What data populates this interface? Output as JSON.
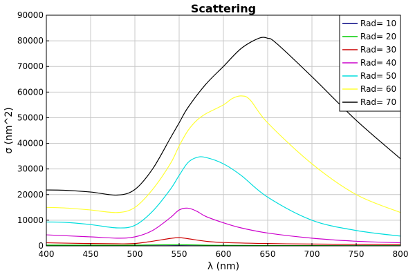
{
  "chart_data": {
    "type": "line",
    "title": "Scattering",
    "xlabel": "λ (nm)",
    "ylabel": "σ (nm^2)",
    "xlim": [
      400,
      800
    ],
    "ylim": [
      0,
      90000
    ],
    "x_ticks": [
      400,
      450,
      500,
      550,
      600,
      650,
      700,
      750,
      800
    ],
    "y_ticks": [
      0,
      10000,
      20000,
      30000,
      40000,
      50000,
      60000,
      70000,
      80000,
      90000
    ],
    "grid": true,
    "legend_position": "top-right",
    "series": [
      {
        "name": "Rad= 10",
        "color": "#000080",
        "x": [
          400,
          500,
          550,
          600,
          700,
          800
        ],
        "y": [
          60,
          40,
          60,
          30,
          15,
          10
        ]
      },
      {
        "name": "Rad= 20",
        "color": "#00cc00",
        "x": [
          400,
          480,
          500,
          550,
          600,
          700,
          800
        ],
        "y": [
          300,
          250,
          300,
          450,
          200,
          100,
          80
        ]
      },
      {
        "name": "Rad= 30",
        "color": "#cc0000",
        "x": [
          400,
          450,
          480,
          500,
          520,
          540,
          550,
          560,
          580,
          600,
          650,
          700,
          750,
          800
        ],
        "y": [
          1200,
          900,
          800,
          900,
          1800,
          2900,
          3200,
          2800,
          1800,
          1300,
          900,
          700,
          600,
          500
        ]
      },
      {
        "name": "Rad= 40",
        "color": "#cc00cc",
        "x": [
          400,
          450,
          480,
          500,
          520,
          540,
          550,
          560,
          570,
          580,
          600,
          620,
          650,
          700,
          750,
          800
        ],
        "y": [
          4300,
          3500,
          3000,
          3500,
          6000,
          11000,
          14000,
          14700,
          13500,
          11500,
          9000,
          7000,
          5000,
          3000,
          1800,
          1200
        ]
      },
      {
        "name": "Rad= 50",
        "color": "#00dddd",
        "x": [
          400,
          420,
          450,
          480,
          500,
          520,
          540,
          550,
          560,
          570,
          580,
          600,
          620,
          650,
          700,
          750,
          800
        ],
        "y": [
          9300,
          9200,
          8300,
          7000,
          8000,
          13500,
          22000,
          27500,
          32500,
          34500,
          34500,
          32000,
          27500,
          19000,
          10000,
          6000,
          3800
        ]
      },
      {
        "name": "Rad= 60",
        "color": "#ffff33",
        "x": [
          400,
          420,
          450,
          480,
          500,
          520,
          540,
          550,
          560,
          570,
          580,
          600,
          610,
          620,
          630,
          650,
          700,
          750,
          800
        ],
        "y": [
          15000,
          14800,
          14000,
          13000,
          15000,
          22000,
          32000,
          39000,
          45000,
          49000,
          51500,
          55000,
          57500,
          58500,
          57000,
          48000,
          32000,
          20000,
          13000
        ]
      },
      {
        "name": "Rad= 70",
        "color": "#000000",
        "x": [
          400,
          420,
          450,
          480,
          500,
          520,
          540,
          550,
          560,
          580,
          600,
          620,
          640,
          650,
          660,
          700,
          750,
          800
        ],
        "y": [
          21800,
          21700,
          21000,
          19800,
          22000,
          30000,
          42000,
          48000,
          54000,
          63000,
          70000,
          77000,
          81000,
          81000,
          79000,
          66000,
          49000,
          34000
        ]
      }
    ]
  }
}
